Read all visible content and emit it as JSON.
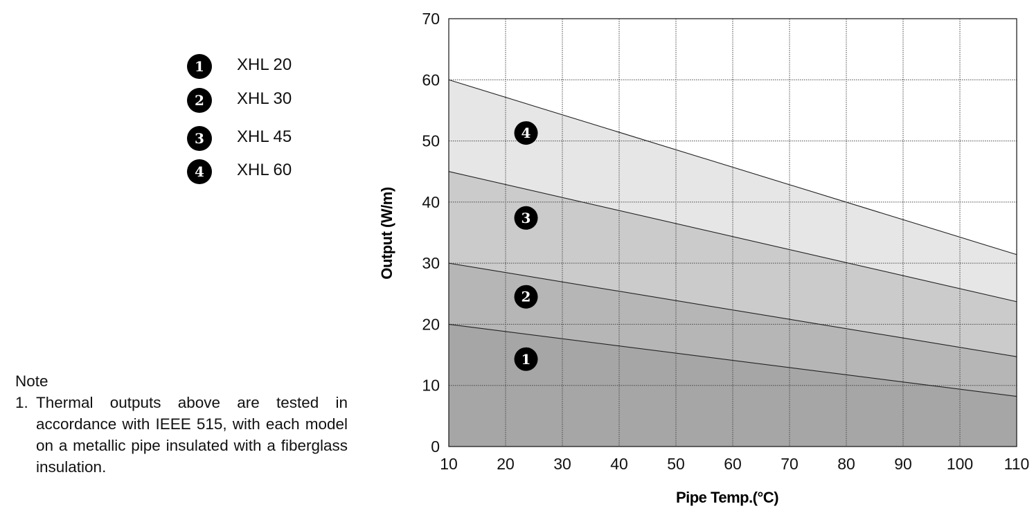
{
  "legend": {
    "items": [
      {
        "marker": "1",
        "label": "XHL 20"
      },
      {
        "marker": "2",
        "label": "XHL 30"
      },
      {
        "marker": "3",
        "label": "XHL 45"
      },
      {
        "marker": "4",
        "label": "XHL 60"
      }
    ]
  },
  "note": {
    "title": "Note",
    "items": [
      {
        "number": "1.",
        "text": "Thermal outputs above are tested in accordance with IEEE 515, with each model on a metallic pipe insulated with a fiberglass insulation."
      }
    ]
  },
  "chart_data": {
    "type": "area",
    "title": "",
    "xlabel": "Pipe Temp.(°C)",
    "ylabel": "Output (W/m)",
    "xlim": [
      10,
      110
    ],
    "ylim": [
      0,
      70
    ],
    "xticks": [
      10,
      20,
      30,
      40,
      50,
      60,
      70,
      80,
      90,
      100,
      110
    ],
    "yticks": [
      0,
      10,
      20,
      30,
      40,
      50,
      60,
      70
    ],
    "grid": true,
    "series": [
      {
        "name": "XHL 20",
        "marker": "1",
        "x": [
          10,
          110
        ],
        "y": [
          20,
          8.2
        ],
        "fill": "#a6a6a6",
        "label_at": [
          23.6,
          14.3
        ]
      },
      {
        "name": "XHL 30",
        "marker": "2",
        "x": [
          10,
          110
        ],
        "y": [
          30,
          14.7
        ],
        "fill": "#b6b6b6",
        "label_at": [
          23.6,
          24.5
        ]
      },
      {
        "name": "XHL 45",
        "marker": "3",
        "x": [
          10,
          110
        ],
        "y": [
          45,
          23.7
        ],
        "fill": "#cbcbcb",
        "label_at": [
          23.6,
          37.4
        ]
      },
      {
        "name": "XHL 60",
        "marker": "4",
        "x": [
          10,
          110
        ],
        "y": [
          60,
          31.4
        ],
        "fill": "#e6e6e6",
        "label_at": [
          23.6,
          51.3
        ]
      }
    ]
  }
}
